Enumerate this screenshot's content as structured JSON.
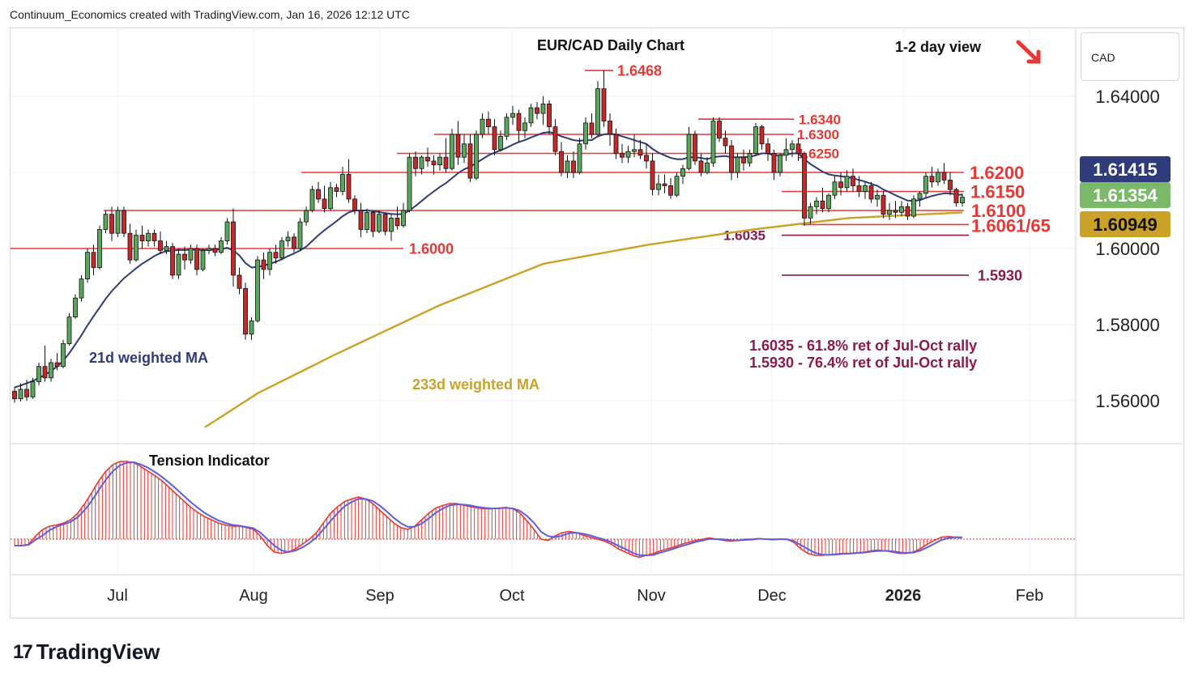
{
  "header": "Continuum_Economics created with TradingView.com, Jan 16, 2026 12:12 UTC",
  "footer": {
    "brand": "TradingView",
    "mark": "17"
  },
  "currency_label": "CAD",
  "chart_data": {
    "type": "candlestick",
    "title": "EUR/CAD Daily Chart",
    "subtitle": "1-2 day view",
    "view_direction": "down",
    "y_ticks": [
      "1.64000",
      "1.60000",
      "1.58000",
      "1.56000"
    ],
    "y_tick_values": [
      1.64,
      1.6,
      1.58,
      1.56
    ],
    "x_ticks": [
      "Jul",
      "Aug",
      "Sep",
      "Oct",
      "Nov",
      "Dec",
      "2026",
      "Feb"
    ],
    "price_tags": [
      {
        "label": "1.61415",
        "color": "#2f3b7a"
      },
      {
        "label": "1.61354",
        "color": "#7ab86a"
      },
      {
        "label": "1.60949",
        "color": "#c9a227"
      }
    ],
    "levels": [
      {
        "label": "1.6468",
        "value": 1.6468,
        "color": "#e53935"
      },
      {
        "label": "1.6340",
        "value": 1.634,
        "color": "#e53935"
      },
      {
        "label": "1.6300",
        "value": 1.63,
        "color": "#e53935"
      },
      {
        "label": "1.6250",
        "value": 1.625,
        "color": "#e53935"
      },
      {
        "label": "1.6200",
        "value": 1.62,
        "color": "#e53935"
      },
      {
        "label": "1.6150",
        "value": 1.615,
        "color": "#e53935"
      },
      {
        "label": "1.6100",
        "value": 1.61,
        "color": "#e53935"
      },
      {
        "label": "1.6061/65",
        "value": 1.6063,
        "color": "#e53935"
      },
      {
        "label": "1.6000",
        "value": 1.6,
        "color": "#e53935"
      },
      {
        "label": "1.6035",
        "value": 1.6035,
        "color": "#8b1a4a"
      },
      {
        "label": "1.5930",
        "value": 1.593,
        "color": "#8b1a4a"
      }
    ],
    "annotations": [
      "1.6035 - 61.8% ret of Jul-Oct rally",
      "1.5930 - 76.4% ret of Jul-Oct rally"
    ],
    "series": [
      {
        "name": "21d weighted MA",
        "color": "#2f3b7a"
      },
      {
        "name": "233d weighted MA",
        "color": "#c9a227"
      }
    ],
    "indicator": {
      "name": "Tension Indicator",
      "color_bars": "#e53935",
      "color_line": "#5b5fe0"
    },
    "candles": [
      [
        1.5625,
        1.5635,
        1.5595,
        1.5605
      ],
      [
        1.5605,
        1.5645,
        1.5598,
        1.563
      ],
      [
        1.563,
        1.5655,
        1.56,
        1.561
      ],
      [
        1.561,
        1.566,
        1.5605,
        1.565
      ],
      [
        1.565,
        1.57,
        1.564,
        1.569
      ],
      [
        1.569,
        1.5745,
        1.565,
        1.566
      ],
      [
        1.566,
        1.571,
        1.565,
        1.57
      ],
      [
        1.57,
        1.5725,
        1.568,
        1.569
      ],
      [
        1.569,
        1.576,
        1.5685,
        1.575
      ],
      [
        1.575,
        1.583,
        1.5745,
        1.582
      ],
      [
        1.582,
        1.588,
        1.5815,
        1.587
      ],
      [
        1.587,
        1.593,
        1.586,
        1.592
      ],
      [
        1.592,
        1.6,
        1.591,
        1.599
      ],
      [
        1.599,
        1.601,
        1.593,
        1.595
      ],
      [
        1.595,
        1.606,
        1.5945,
        1.605
      ],
      [
        1.605,
        1.61,
        1.604,
        1.609
      ],
      [
        1.609,
        1.611,
        1.602,
        1.604
      ],
      [
        1.604,
        1.611,
        1.603,
        1.61
      ],
      [
        1.61,
        1.611,
        1.603,
        1.604
      ],
      [
        1.604,
        1.6065,
        1.596,
        1.597
      ],
      [
        1.597,
        1.605,
        1.5965,
        1.6035
      ],
      [
        1.6035,
        1.606,
        1.6,
        1.602
      ],
      [
        1.602,
        1.605,
        1.6005,
        1.604
      ],
      [
        1.604,
        1.605,
        1.6005,
        1.602
      ],
      [
        1.602,
        1.6045,
        1.5985,
        1.5995
      ],
      [
        1.5995,
        1.602,
        1.5985,
        1.6005
      ],
      [
        1.6005,
        1.6015,
        1.592,
        1.593
      ],
      [
        1.593,
        1.6,
        1.592,
        1.5985
      ],
      [
        1.5985,
        1.6005,
        1.5945,
        1.597
      ],
      [
        1.597,
        1.601,
        1.596,
        1.6
      ],
      [
        1.6,
        1.601,
        1.593,
        1.5945
      ],
      [
        1.5945,
        1.6,
        1.594,
        1.5995
      ],
      [
        1.5995,
        1.601,
        1.5985,
        1.6
      ],
      [
        1.6,
        1.601,
        1.598,
        1.599
      ],
      [
        1.599,
        1.603,
        1.5985,
        1.602
      ],
      [
        1.602,
        1.608,
        1.601,
        1.607
      ],
      [
        1.607,
        1.6105,
        1.59,
        1.593
      ],
      [
        1.593,
        1.595,
        1.588,
        1.5895
      ],
      [
        1.5895,
        1.591,
        1.576,
        1.5775
      ],
      [
        1.5775,
        1.582,
        1.576,
        1.581
      ],
      [
        1.581,
        1.598,
        1.5805,
        1.597
      ],
      [
        1.597,
        1.599,
        1.592,
        1.5945
      ],
      [
        1.5945,
        1.6,
        1.593,
        1.599
      ],
      [
        1.599,
        1.601,
        1.596,
        1.5975
      ],
      [
        1.5975,
        1.603,
        1.597,
        1.602
      ],
      [
        1.602,
        1.6045,
        1.6005,
        1.603
      ],
      [
        1.603,
        1.604,
        1.599,
        1.6
      ],
      [
        1.6,
        1.608,
        1.5995,
        1.607
      ],
      [
        1.607,
        1.611,
        1.606,
        1.61
      ],
      [
        1.61,
        1.6165,
        1.6095,
        1.6155
      ],
      [
        1.6155,
        1.6175,
        1.612,
        1.613
      ],
      [
        1.613,
        1.6165,
        1.6095,
        1.6105
      ],
      [
        1.6105,
        1.6175,
        1.61,
        1.616
      ],
      [
        1.616,
        1.617,
        1.6135,
        1.615
      ],
      [
        1.615,
        1.6215,
        1.614,
        1.6195
      ],
      [
        1.6195,
        1.6235,
        1.612,
        1.613
      ],
      [
        1.613,
        1.614,
        1.609,
        1.61
      ],
      [
        1.61,
        1.612,
        1.603,
        1.605
      ],
      [
        1.605,
        1.6105,
        1.604,
        1.6095
      ],
      [
        1.6095,
        1.61,
        1.603,
        1.6045
      ],
      [
        1.6045,
        1.61,
        1.604,
        1.609
      ],
      [
        1.609,
        1.6095,
        1.6035,
        1.6045
      ],
      [
        1.6045,
        1.609,
        1.602,
        1.608
      ],
      [
        1.608,
        1.611,
        1.605,
        1.606
      ],
      [
        1.606,
        1.612,
        1.6055,
        1.61
      ],
      [
        1.61,
        1.625,
        1.6095,
        1.624
      ],
      [
        1.624,
        1.6255,
        1.619,
        1.621
      ],
      [
        1.621,
        1.6245,
        1.6195,
        1.624
      ],
      [
        1.624,
        1.6265,
        1.6215,
        1.623
      ],
      [
        1.623,
        1.6245,
        1.6195,
        1.622
      ],
      [
        1.622,
        1.625,
        1.6205,
        1.624
      ],
      [
        1.624,
        1.629,
        1.62,
        1.621
      ],
      [
        1.621,
        1.6315,
        1.6205,
        1.63
      ],
      [
        1.63,
        1.6335,
        1.622,
        1.624
      ],
      [
        1.624,
        1.63,
        1.6225,
        1.6275
      ],
      [
        1.6275,
        1.63,
        1.6175,
        1.6185
      ],
      [
        1.6185,
        1.631,
        1.618,
        1.63
      ],
      [
        1.63,
        1.6355,
        1.629,
        1.634
      ],
      [
        1.634,
        1.636,
        1.63,
        1.632
      ],
      [
        1.632,
        1.634,
        1.6245,
        1.626
      ],
      [
        1.626,
        1.631,
        1.6255,
        1.6295
      ],
      [
        1.6295,
        1.6355,
        1.6285,
        1.6345
      ],
      [
        1.6345,
        1.6375,
        1.6325,
        1.6355
      ],
      [
        1.6355,
        1.6365,
        1.628,
        1.631
      ],
      [
        1.631,
        1.6345,
        1.629,
        1.633
      ],
      [
        1.633,
        1.638,
        1.632,
        1.637
      ],
      [
        1.637,
        1.6385,
        1.634,
        1.6355
      ],
      [
        1.6355,
        1.64,
        1.6325,
        1.638
      ],
      [
        1.638,
        1.639,
        1.63,
        1.632
      ],
      [
        1.632,
        1.634,
        1.6245,
        1.6255
      ],
      [
        1.6255,
        1.628,
        1.619,
        1.62
      ],
      [
        1.62,
        1.6245,
        1.6185,
        1.623
      ],
      [
        1.623,
        1.6255,
        1.6185,
        1.62
      ],
      [
        1.62,
        1.629,
        1.6195,
        1.6275
      ],
      [
        1.6275,
        1.6345,
        1.626,
        1.633
      ],
      [
        1.633,
        1.6355,
        1.629,
        1.63
      ],
      [
        1.63,
        1.644,
        1.6295,
        1.642
      ],
      [
        1.642,
        1.6468,
        1.632,
        1.6335
      ],
      [
        1.6335,
        1.6355,
        1.627,
        1.63
      ],
      [
        1.63,
        1.6315,
        1.6235,
        1.625
      ],
      [
        1.625,
        1.6275,
        1.6225,
        1.624
      ],
      [
        1.624,
        1.627,
        1.6225,
        1.6255
      ],
      [
        1.6255,
        1.63,
        1.624,
        1.626
      ],
      [
        1.626,
        1.6285,
        1.6235,
        1.6245
      ],
      [
        1.6245,
        1.6275,
        1.621,
        1.623
      ],
      [
        1.623,
        1.625,
        1.614,
        1.6155
      ],
      [
        1.6155,
        1.6195,
        1.614,
        1.617
      ],
      [
        1.617,
        1.6195,
        1.6145,
        1.6165
      ],
      [
        1.6165,
        1.6185,
        1.613,
        1.614
      ],
      [
        1.614,
        1.62,
        1.6135,
        1.619
      ],
      [
        1.619,
        1.622,
        1.617,
        1.621
      ],
      [
        1.621,
        1.632,
        1.6205,
        1.63
      ],
      [
        1.63,
        1.631,
        1.622,
        1.623
      ],
      [
        1.623,
        1.625,
        1.619,
        1.62
      ],
      [
        1.62,
        1.624,
        1.6195,
        1.6225
      ],
      [
        1.6225,
        1.6345,
        1.6215,
        1.6335
      ],
      [
        1.6335,
        1.6345,
        1.628,
        1.629
      ],
      [
        1.629,
        1.631,
        1.625,
        1.627
      ],
      [
        1.627,
        1.6285,
        1.618,
        1.62
      ],
      [
        1.62,
        1.625,
        1.6185,
        1.624
      ],
      [
        1.624,
        1.626,
        1.6205,
        1.6225
      ],
      [
        1.6225,
        1.626,
        1.6215,
        1.625
      ],
      [
        1.625,
        1.633,
        1.6245,
        1.632
      ],
      [
        1.632,
        1.6325,
        1.626,
        1.6275
      ],
      [
        1.6275,
        1.629,
        1.623,
        1.625
      ],
      [
        1.625,
        1.626,
        1.618,
        1.62
      ],
      [
        1.62,
        1.625,
        1.619,
        1.6245
      ],
      [
        1.6245,
        1.629,
        1.623,
        1.626
      ],
      [
        1.626,
        1.6285,
        1.624,
        1.6275
      ],
      [
        1.6275,
        1.629,
        1.623,
        1.625
      ],
      [
        1.625,
        1.6255,
        1.606,
        1.608
      ],
      [
        1.608,
        1.612,
        1.6065,
        1.611
      ],
      [
        1.611,
        1.6135,
        1.609,
        1.6125
      ],
      [
        1.6125,
        1.616,
        1.6095,
        1.6105
      ],
      [
        1.6105,
        1.6145,
        1.6095,
        1.614
      ],
      [
        1.614,
        1.619,
        1.613,
        1.6175
      ],
      [
        1.6175,
        1.62,
        1.614,
        1.616
      ],
      [
        1.616,
        1.6205,
        1.615,
        1.619
      ],
      [
        1.619,
        1.621,
        1.615,
        1.6165
      ],
      [
        1.6165,
        1.619,
        1.6135,
        1.615
      ],
      [
        1.615,
        1.6175,
        1.613,
        1.6165
      ],
      [
        1.6165,
        1.6175,
        1.612,
        1.613
      ],
      [
        1.613,
        1.6155,
        1.611,
        1.614
      ],
      [
        1.614,
        1.615,
        1.608,
        1.609
      ],
      [
        1.609,
        1.612,
        1.6075,
        1.61
      ],
      [
        1.61,
        1.6125,
        1.608,
        1.6095
      ],
      [
        1.6095,
        1.6125,
        1.6085,
        1.611
      ],
      [
        1.611,
        1.612,
        1.6075,
        1.6085
      ],
      [
        1.6085,
        1.614,
        1.608,
        1.613
      ],
      [
        1.613,
        1.615,
        1.611,
        1.6145
      ],
      [
        1.6145,
        1.62,
        1.6135,
        1.619
      ],
      [
        1.619,
        1.6215,
        1.616,
        1.6175
      ],
      [
        1.6175,
        1.621,
        1.6165,
        1.62
      ],
      [
        1.62,
        1.6225,
        1.617,
        1.618
      ],
      [
        1.618,
        1.62,
        1.614,
        1.6155
      ],
      [
        1.6155,
        1.616,
        1.611,
        1.612
      ],
      [
        1.612,
        1.6145,
        1.611,
        1.6135
      ]
    ],
    "ma21": [
      1.5635,
      1.564,
      1.5646,
      1.5652,
      1.566,
      1.5668,
      1.5678,
      1.569,
      1.5705,
      1.5725,
      1.5748,
      1.5772,
      1.5798,
      1.5822,
      1.5845,
      1.5868,
      1.5888,
      1.5905,
      1.5922,
      1.5935,
      1.5948,
      1.596,
      1.597,
      1.598,
      1.5988,
      1.5993,
      1.5995,
      1.5996,
      1.5996,
      1.5997,
      1.5997,
      1.5996,
      1.5996,
      1.5997,
      1.5998,
      1.6002,
      1.5995,
      1.5982,
      1.5962,
      1.595,
      1.5952,
      1.5955,
      1.596,
      1.5965,
      1.5972,
      1.598,
      1.5987,
      1.5995,
      1.6005,
      1.602,
      1.6035,
      1.6048,
      1.606,
      1.6072,
      1.6085,
      1.6095,
      1.61,
      1.61,
      1.61,
      1.6098,
      1.6096,
      1.6093,
      1.6091,
      1.609,
      1.6091,
      1.61,
      1.6112,
      1.6125,
      1.6138,
      1.615,
      1.6162,
      1.6172,
      1.6185,
      1.6198,
      1.6208,
      1.6215,
      1.6225,
      1.6235,
      1.6245,
      1.6252,
      1.6258,
      1.6265,
      1.6273,
      1.628,
      1.6285,
      1.6292,
      1.6298,
      1.6304,
      1.6306,
      1.6302,
      1.6295,
      1.629,
      1.6285,
      1.6283,
      1.6285,
      1.6285,
      1.6295,
      1.63,
      1.6302,
      1.63,
      1.6295,
      1.629,
      1.6285,
      1.628,
      1.6275,
      1.6262,
      1.6252,
      1.6245,
      1.6238,
      1.6235,
      1.6235,
      1.624,
      1.624,
      1.6238,
      1.6235,
      1.624,
      1.6242,
      1.6243,
      1.624,
      1.624,
      1.624,
      1.6241,
      1.6245,
      1.625,
      1.625,
      1.6245,
      1.6245,
      1.6247,
      1.625,
      1.625,
      1.6235,
      1.6222,
      1.6212,
      1.6202,
      1.6195,
      1.6192,
      1.619,
      1.6188,
      1.6185,
      1.618,
      1.6176,
      1.617,
      1.6165,
      1.6155,
      1.6148,
      1.614,
      1.6133,
      1.6126,
      1.6125,
      1.6127,
      1.6133,
      1.6138,
      1.6142,
      1.6145,
      1.6145,
      1.6142,
      1.6141
    ],
    "ma233_range": [
      [
        0.17,
        1.553
      ],
      [
        0.26,
        1.562
      ],
      [
        0.34,
        1.572
      ],
      [
        0.45,
        1.585
      ],
      [
        0.56,
        1.596
      ],
      [
        0.67,
        1.601
      ],
      [
        0.78,
        1.605
      ],
      [
        0.88,
        1.608
      ],
      [
        1.0,
        1.6095
      ]
    ],
    "tension": [
      -0.1,
      -0.1,
      -0.08,
      0.05,
      0.15,
      0.2,
      0.22,
      0.25,
      0.3,
      0.4,
      0.55,
      0.72,
      0.9,
      1.05,
      1.15,
      1.2,
      1.2,
      1.18,
      1.12,
      1.05,
      0.98,
      0.9,
      0.8,
      0.7,
      0.6,
      0.5,
      0.42,
      0.35,
      0.3,
      0.25,
      0.22,
      0.2,
      0.2,
      0.18,
      0.15,
      0.05,
      -0.1,
      -0.2,
      -0.22,
      -0.2,
      -0.15,
      -0.08,
      0.0,
      0.1,
      0.25,
      0.4,
      0.5,
      0.58,
      0.62,
      0.65,
      0.62,
      0.55,
      0.45,
      0.35,
      0.25,
      0.18,
      0.15,
      0.2,
      0.3,
      0.4,
      0.48,
      0.52,
      0.55,
      0.55,
      0.52,
      0.5,
      0.48,
      0.47,
      0.47,
      0.48,
      0.49,
      0.47,
      0.4,
      0.28,
      0.15,
      0.0,
      -0.02,
      0.05,
      0.1,
      0.12,
      0.1,
      0.06,
      0.03,
      0.0,
      -0.03,
      -0.08,
      -0.15,
      -0.2,
      -0.25,
      -0.28,
      -0.25,
      -0.22,
      -0.18,
      -0.15,
      -0.12,
      -0.08,
      -0.05,
      -0.02,
      0.0,
      0.02,
      0.0,
      -0.02,
      -0.03,
      -0.02,
      0.0,
      0.0,
      0.01,
      0.0,
      -0.01,
      0.0,
      0.0,
      -0.05,
      -0.15,
      -0.22,
      -0.25,
      -0.25,
      -0.24,
      -0.23,
      -0.22,
      -0.22,
      -0.21,
      -0.2,
      -0.18,
      -0.17,
      -0.18,
      -0.2,
      -0.22,
      -0.22,
      -0.2,
      -0.15,
      -0.08,
      -0.02,
      0.03,
      0.04,
      0.03,
      0.02
    ]
  }
}
